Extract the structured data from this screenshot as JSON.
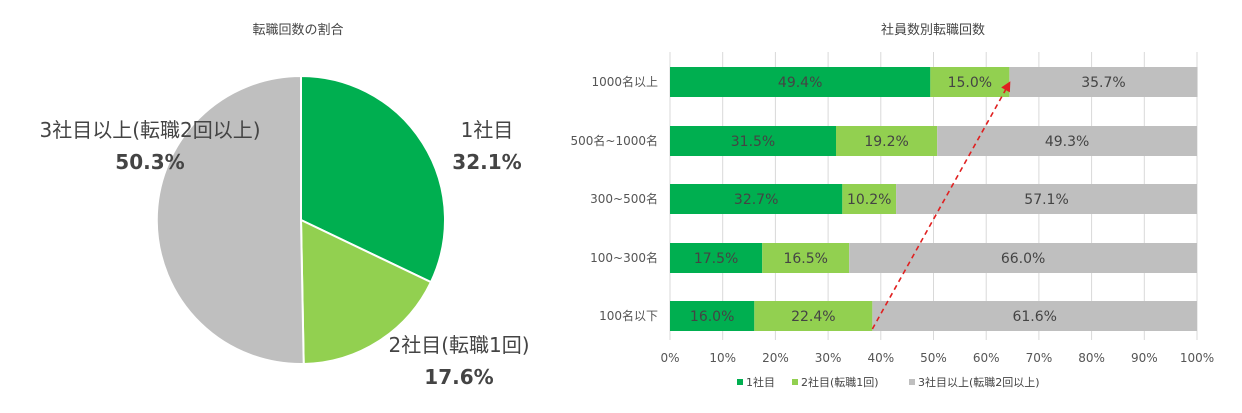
{
  "chart_data": [
    {
      "type": "pie",
      "title": "転職回数の割合",
      "slices": [
        {
          "name": "1社目",
          "value": 32.1,
          "label": "1社目",
          "percent_label": "32.1%",
          "color": "#00AF50"
        },
        {
          "name": "2社目(転職1回)",
          "value": 17.6,
          "label": "2社目(転職1回)",
          "percent_label": "17.6%",
          "color": "#92D050"
        },
        {
          "name": "3社目以上(転職2回以上)",
          "value": 50.3,
          "label": "3社目以上(転職2回以上)",
          "percent_label": "50.3%",
          "color": "#BFBFBF"
        }
      ]
    },
    {
      "type": "bar",
      "orientation": "horizontal",
      "stacked": "percent",
      "title": "社員数別転職回数",
      "categories": [
        "1000名以上",
        "500名~1000名",
        "300~500名",
        "100~300名",
        "100名以下"
      ],
      "series": [
        {
          "name": "1社目",
          "color": "#00AF50",
          "values": [
            49.4,
            31.5,
            32.7,
            17.5,
            16.0
          ],
          "labels": [
            "49.4%",
            "31.5%",
            "32.7%",
            "17.5%",
            "16.0%"
          ]
        },
        {
          "name": "2社目(転職1回)",
          "color": "#92D050",
          "values": [
            15.0,
            19.2,
            10.2,
            16.5,
            22.4
          ],
          "labels": [
            "15.0%",
            "19.2%",
            "10.2%",
            "16.5%",
            "22.4%"
          ]
        },
        {
          "name": "3社目以上(転職2回以上)",
          "color": "#BFBFBF",
          "values": [
            35.7,
            49.3,
            57.1,
            66.0,
            61.6
          ],
          "labels": [
            "35.7%",
            "49.3%",
            "57.1%",
            "66.0%",
            "61.6%"
          ]
        }
      ],
      "x_ticks": [
        "0%",
        "10%",
        "20%",
        "30%",
        "40%",
        "50%",
        "60%",
        "70%",
        "80%",
        "90%",
        "100%"
      ],
      "xlim": [
        0,
        100
      ],
      "grid": true,
      "legend": "bottom",
      "legend_items": [
        "1社目",
        "2社目(転職1回)",
        "3社目以上(転職2回以上)"
      ],
      "annotation": {
        "type": "arrow",
        "style": "dashed",
        "color": "#E02020",
        "from": {
          "category": "100名以下",
          "x": 38.4
        },
        "to": {
          "category": "1000名以上",
          "x": 64.4
        }
      }
    }
  ]
}
